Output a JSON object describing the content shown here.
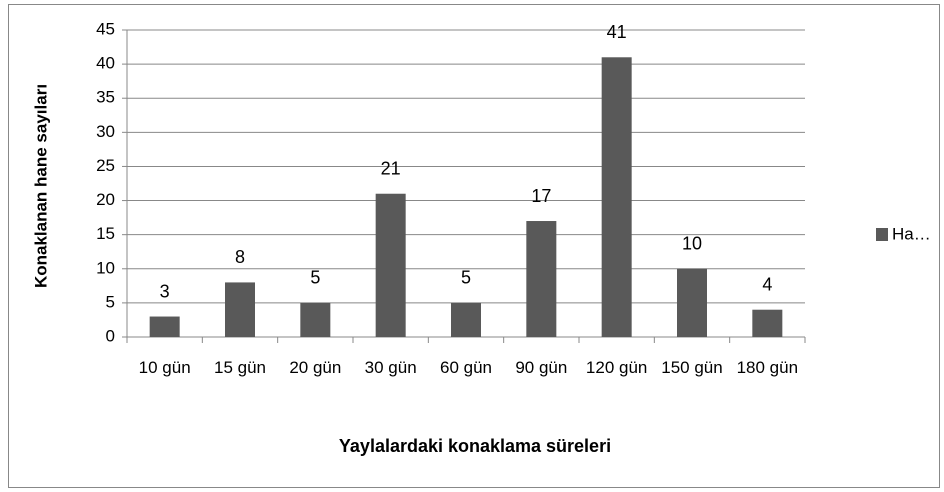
{
  "chart_data": {
    "type": "bar",
    "y_label": "Konaklanan hane sayıları",
    "x_label": "Yaylalardaki konaklama süreleri",
    "categories": [
      "10 gün",
      "15 gün",
      "20 gün",
      "30 gün",
      "60 gün",
      "90 gün",
      "120 gün",
      "150 gün",
      "180 gün"
    ],
    "series": [
      {
        "name": "Ha…",
        "color": "#595959",
        "values": [
          3,
          8,
          5,
          21,
          5,
          17,
          41,
          10,
          4
        ]
      }
    ],
    "ylim": [
      0,
      45
    ],
    "yticks": [
      0,
      5,
      10,
      15,
      20,
      25,
      30,
      35,
      40,
      45
    ],
    "grid": true,
    "legend": "right"
  }
}
